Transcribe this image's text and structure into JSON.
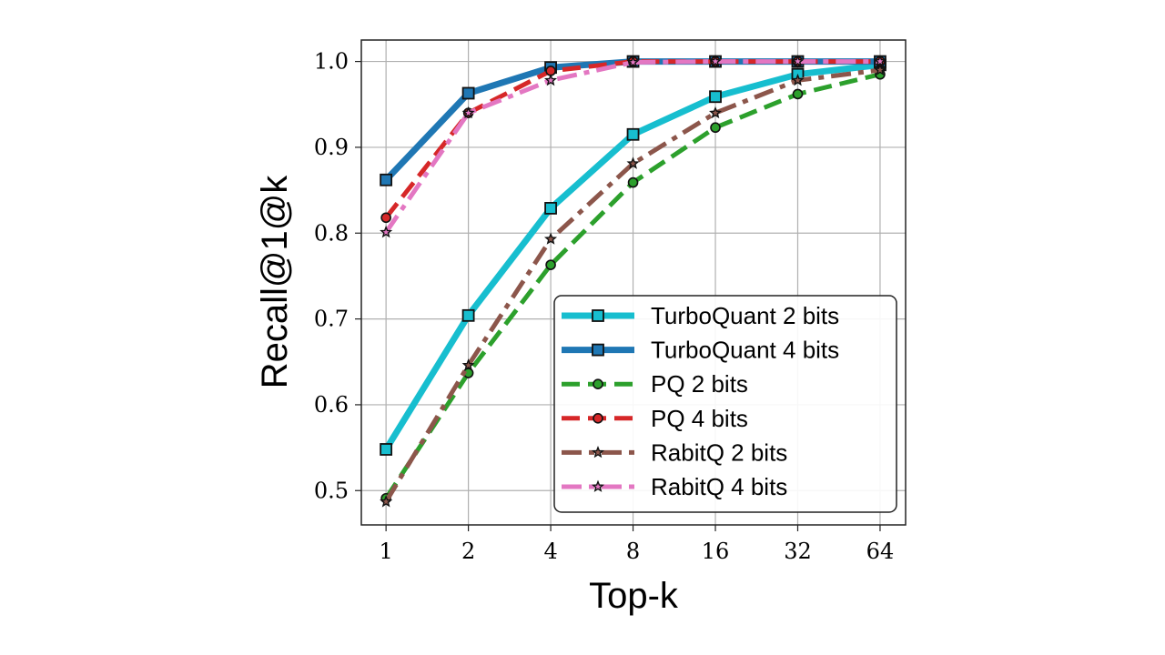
{
  "chart_data": {
    "type": "line",
    "title": "",
    "xlabel": "Top-k",
    "ylabel": "Recall@1@k",
    "x": [
      1,
      2,
      4,
      8,
      16,
      32,
      64
    ],
    "x_tick_labels": [
      "1",
      "2",
      "4",
      "8",
      "16",
      "32",
      "64"
    ],
    "x_scale": "log2",
    "y_ticks": [
      0.5,
      0.6,
      0.7,
      0.8,
      0.9,
      1.0
    ],
    "y_tick_labels": [
      "0.5",
      "0.6",
      "0.7",
      "0.8",
      "0.9",
      "1.0"
    ],
    "ylim": [
      0.46,
      1.025
    ],
    "grid": true,
    "legend_position": "lower-right",
    "series": [
      {
        "name": "TurboQuant 2 bits",
        "color": "#17becf",
        "dash": "solid",
        "marker": "square",
        "width": 7,
        "values": [
          0.548,
          0.704,
          0.829,
          0.915,
          0.959,
          0.985,
          0.996
        ]
      },
      {
        "name": "TurboQuant 4 bits",
        "color": "#1f77b4",
        "dash": "solid",
        "marker": "square",
        "width": 7,
        "values": [
          0.862,
          0.963,
          0.993,
          1.0,
          1.0,
          1.0,
          1.0
        ]
      },
      {
        "name": "PQ 2 bits",
        "color": "#2ca02c",
        "dash": "dashed",
        "marker": "circle",
        "width": 5,
        "values": [
          0.491,
          0.637,
          0.763,
          0.859,
          0.923,
          0.962,
          0.985
        ]
      },
      {
        "name": "PQ 4 bits",
        "color": "#d62728",
        "dash": "dashed",
        "marker": "circle",
        "width": 5,
        "values": [
          0.818,
          0.94,
          0.989,
          1.0,
          1.0,
          1.0,
          1.0
        ]
      },
      {
        "name": "RabitQ 2 bits",
        "color": "#8c564b",
        "dash": "dashdot",
        "marker": "star",
        "width": 5,
        "values": [
          0.487,
          0.646,
          0.793,
          0.881,
          0.94,
          0.978,
          0.99
        ]
      },
      {
        "name": "RabitQ 4 bits",
        "color": "#e377c2",
        "dash": "dashdot",
        "marker": "star",
        "width": 5,
        "values": [
          0.801,
          0.94,
          0.978,
          0.999,
          1.0,
          1.0,
          1.0
        ]
      }
    ]
  }
}
